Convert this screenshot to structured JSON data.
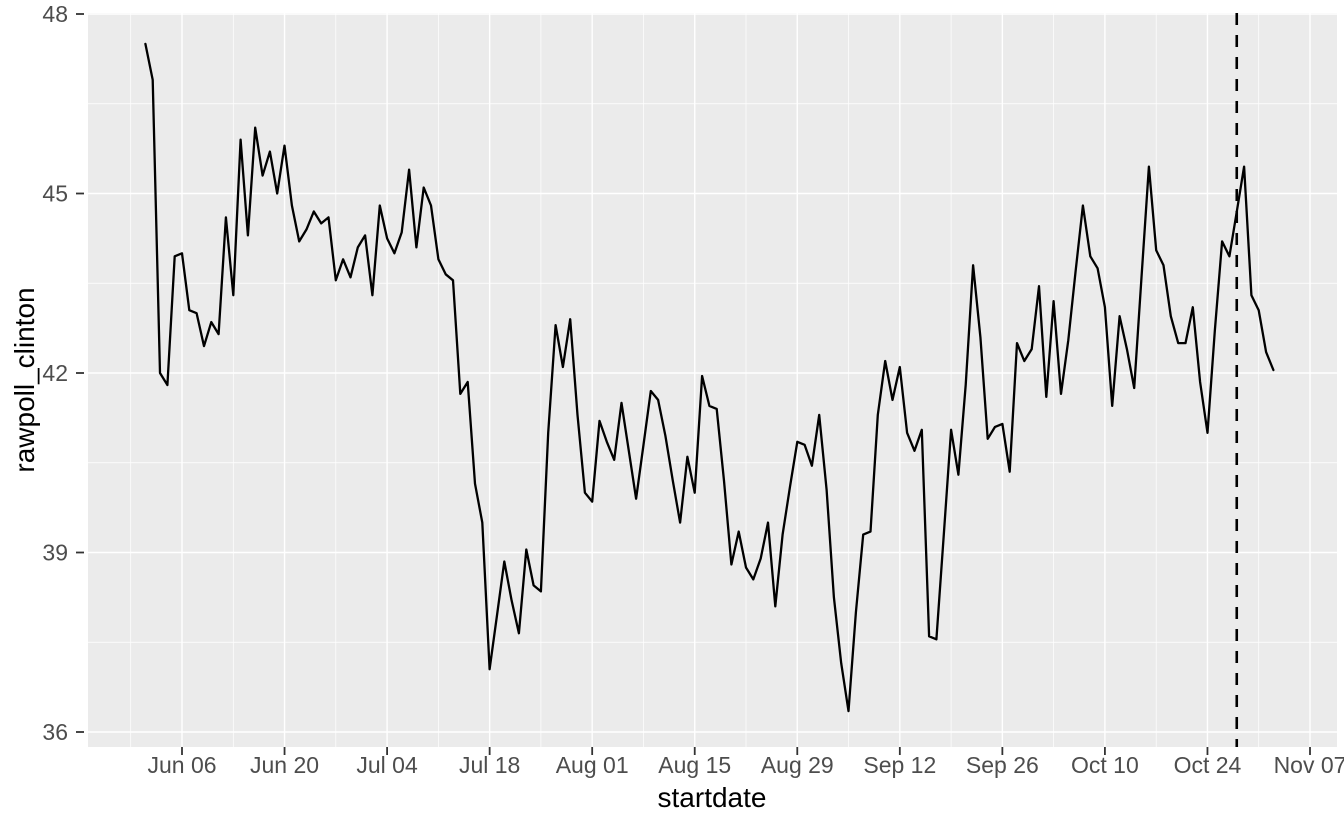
{
  "figure": {
    "background": "#ffffff",
    "panel_background": "#ebebeb",
    "grid_color": "#ffffff",
    "line_color": "#000000",
    "tick_text_color": "#4d4d4d",
    "axis_title_color": "#000000"
  },
  "chart_data": {
    "type": "line",
    "title": "",
    "xlabel": "startdate",
    "ylabel": "rawpoll_clinton",
    "legend": "none",
    "grid": "white major and minor gridlines on gray panel",
    "y_ticks": [
      36,
      39,
      42,
      45,
      48
    ],
    "y_minor_ticks": [
      37.5,
      40.5,
      43.5,
      46.5
    ],
    "ylim": [
      35.75,
      48.05
    ],
    "x_ticks": [
      {
        "label": "Jun 06",
        "date": "2016-06-06"
      },
      {
        "label": "Jun 20",
        "date": "2016-06-20"
      },
      {
        "label": "Jul 04",
        "date": "2016-07-04"
      },
      {
        "label": "Jul 18",
        "date": "2016-07-18"
      },
      {
        "label": "Aug 01",
        "date": "2016-08-01"
      },
      {
        "label": "Aug 15",
        "date": "2016-08-15"
      },
      {
        "label": "Aug 29",
        "date": "2016-08-29"
      },
      {
        "label": "Sep 12",
        "date": "2016-09-12"
      },
      {
        "label": "Sep 26",
        "date": "2016-09-26"
      },
      {
        "label": "Oct 10",
        "date": "2016-10-10"
      },
      {
        "label": "Oct 24",
        "date": "2016-10-24"
      },
      {
        "label": "Nov 07",
        "date": "2016-11-07"
      }
    ],
    "x_minor_tick_dates": [
      "2016-05-30",
      "2016-06-13",
      "2016-06-27",
      "2016-07-11",
      "2016-07-25",
      "2016-08-08",
      "2016-08-22",
      "2016-09-05",
      "2016-09-19",
      "2016-10-03",
      "2016-10-17",
      "2016-10-31"
    ],
    "xlim_dates": [
      "2016-05-24",
      "2016-11-10"
    ],
    "vline": {
      "date": "2016-10-28",
      "style": "dashed",
      "color": "#000000"
    },
    "series": [
      {
        "name": "rawpoll_clinton",
        "points": [
          [
            "2016-06-01",
            47.5
          ],
          [
            "2016-06-02",
            46.9
          ],
          [
            "2016-06-03",
            42.0
          ],
          [
            "2016-06-04",
            41.8
          ],
          [
            "2016-06-05",
            43.95
          ],
          [
            "2016-06-06",
            44.0
          ],
          [
            "2016-06-07",
            43.05
          ],
          [
            "2016-06-08",
            43.0
          ],
          [
            "2016-06-09",
            42.45
          ],
          [
            "2016-06-10",
            42.85
          ],
          [
            "2016-06-11",
            42.65
          ],
          [
            "2016-06-12",
            44.6
          ],
          [
            "2016-06-13",
            43.3
          ],
          [
            "2016-06-14",
            45.9
          ],
          [
            "2016-06-15",
            44.3
          ],
          [
            "2016-06-16",
            46.1
          ],
          [
            "2016-06-17",
            45.3
          ],
          [
            "2016-06-18",
            45.7
          ],
          [
            "2016-06-19",
            45.0
          ],
          [
            "2016-06-20",
            45.8
          ],
          [
            "2016-06-21",
            44.8
          ],
          [
            "2016-06-22",
            44.2
          ],
          [
            "2016-06-23",
            44.4
          ],
          [
            "2016-06-24",
            44.7
          ],
          [
            "2016-06-25",
            44.5
          ],
          [
            "2016-06-26",
            44.6
          ],
          [
            "2016-06-27",
            43.55
          ],
          [
            "2016-06-28",
            43.9
          ],
          [
            "2016-06-29",
            43.6
          ],
          [
            "2016-06-30",
            44.1
          ],
          [
            "2016-07-01",
            44.3
          ],
          [
            "2016-07-02",
            43.3
          ],
          [
            "2016-07-03",
            44.8
          ],
          [
            "2016-07-04",
            44.25
          ],
          [
            "2016-07-05",
            44.0
          ],
          [
            "2016-07-06",
            44.35
          ],
          [
            "2016-07-07",
            45.4
          ],
          [
            "2016-07-08",
            44.1
          ],
          [
            "2016-07-09",
            45.1
          ],
          [
            "2016-07-10",
            44.8
          ],
          [
            "2016-07-11",
            43.9
          ],
          [
            "2016-07-12",
            43.65
          ],
          [
            "2016-07-13",
            43.55
          ],
          [
            "2016-07-14",
            41.65
          ],
          [
            "2016-07-15",
            41.85
          ],
          [
            "2016-07-16",
            40.15
          ],
          [
            "2016-07-17",
            39.5
          ],
          [
            "2016-07-18",
            37.05
          ],
          [
            "2016-07-19",
            37.95
          ],
          [
            "2016-07-20",
            38.85
          ],
          [
            "2016-07-21",
            38.2
          ],
          [
            "2016-07-22",
            37.65
          ],
          [
            "2016-07-23",
            39.05
          ],
          [
            "2016-07-24",
            38.45
          ],
          [
            "2016-07-25",
            38.35
          ],
          [
            "2016-07-26",
            41.0
          ],
          [
            "2016-07-27",
            42.8
          ],
          [
            "2016-07-28",
            42.1
          ],
          [
            "2016-07-29",
            42.9
          ],
          [
            "2016-07-30",
            41.3
          ],
          [
            "2016-07-31",
            40.0
          ],
          [
            "2016-08-01",
            39.85
          ],
          [
            "2016-08-02",
            41.2
          ],
          [
            "2016-08-03",
            40.85
          ],
          [
            "2016-08-04",
            40.55
          ],
          [
            "2016-08-05",
            41.5
          ],
          [
            "2016-08-06",
            40.7
          ],
          [
            "2016-08-07",
            39.9
          ],
          [
            "2016-08-08",
            40.8
          ],
          [
            "2016-08-09",
            41.7
          ],
          [
            "2016-08-10",
            41.55
          ],
          [
            "2016-08-11",
            40.95
          ],
          [
            "2016-08-12",
            40.2
          ],
          [
            "2016-08-13",
            39.5
          ],
          [
            "2016-08-14",
            40.6
          ],
          [
            "2016-08-15",
            40.0
          ],
          [
            "2016-08-16",
            41.95
          ],
          [
            "2016-08-17",
            41.45
          ],
          [
            "2016-08-18",
            41.4
          ],
          [
            "2016-08-19",
            40.2
          ],
          [
            "2016-08-20",
            38.8
          ],
          [
            "2016-08-21",
            39.35
          ],
          [
            "2016-08-22",
            38.75
          ],
          [
            "2016-08-23",
            38.55
          ],
          [
            "2016-08-24",
            38.9
          ],
          [
            "2016-08-25",
            39.5
          ],
          [
            "2016-08-26",
            38.1
          ],
          [
            "2016-08-27",
            39.3
          ],
          [
            "2016-08-28",
            40.1
          ],
          [
            "2016-08-29",
            40.85
          ],
          [
            "2016-08-30",
            40.8
          ],
          [
            "2016-08-31",
            40.45
          ],
          [
            "2016-09-01",
            41.3
          ],
          [
            "2016-09-02",
            40.05
          ],
          [
            "2016-09-03",
            38.25
          ],
          [
            "2016-09-04",
            37.15
          ],
          [
            "2016-09-05",
            36.35
          ],
          [
            "2016-09-06",
            38.0
          ],
          [
            "2016-09-07",
            39.3
          ],
          [
            "2016-09-08",
            39.35
          ],
          [
            "2016-09-09",
            41.3
          ],
          [
            "2016-09-10",
            42.2
          ],
          [
            "2016-09-11",
            41.55
          ],
          [
            "2016-09-12",
            42.1
          ],
          [
            "2016-09-13",
            41.0
          ],
          [
            "2016-09-14",
            40.7
          ],
          [
            "2016-09-15",
            41.05
          ],
          [
            "2016-09-16",
            37.6
          ],
          [
            "2016-09-17",
            37.55
          ],
          [
            "2016-09-18",
            39.3
          ],
          [
            "2016-09-19",
            41.05
          ],
          [
            "2016-09-20",
            40.3
          ],
          [
            "2016-09-21",
            41.8
          ],
          [
            "2016-09-22",
            43.8
          ],
          [
            "2016-09-23",
            42.6
          ],
          [
            "2016-09-24",
            40.9
          ],
          [
            "2016-09-25",
            41.1
          ],
          [
            "2016-09-26",
            41.15
          ],
          [
            "2016-09-27",
            40.35
          ],
          [
            "2016-09-28",
            42.5
          ],
          [
            "2016-09-29",
            42.2
          ],
          [
            "2016-09-30",
            42.4
          ],
          [
            "2016-10-01",
            43.45
          ],
          [
            "2016-10-02",
            41.6
          ],
          [
            "2016-10-03",
            43.2
          ],
          [
            "2016-10-04",
            41.65
          ],
          [
            "2016-10-05",
            42.55
          ],
          [
            "2016-10-06",
            43.7
          ],
          [
            "2016-10-07",
            44.8
          ],
          [
            "2016-10-08",
            43.95
          ],
          [
            "2016-10-09",
            43.75
          ],
          [
            "2016-10-10",
            43.1
          ],
          [
            "2016-10-11",
            41.45
          ],
          [
            "2016-10-12",
            42.95
          ],
          [
            "2016-10-13",
            42.4
          ],
          [
            "2016-10-14",
            41.75
          ],
          [
            "2016-10-15",
            43.6
          ],
          [
            "2016-10-16",
            45.45
          ],
          [
            "2016-10-17",
            44.05
          ],
          [
            "2016-10-18",
            43.8
          ],
          [
            "2016-10-19",
            42.95
          ],
          [
            "2016-10-20",
            42.5
          ],
          [
            "2016-10-21",
            42.5
          ],
          [
            "2016-10-22",
            43.1
          ],
          [
            "2016-10-23",
            41.85
          ],
          [
            "2016-10-24",
            41.0
          ],
          [
            "2016-10-25",
            42.7
          ],
          [
            "2016-10-26",
            44.2
          ],
          [
            "2016-10-27",
            43.95
          ],
          [
            "2016-10-28",
            44.7
          ],
          [
            "2016-10-29",
            45.45
          ],
          [
            "2016-10-30",
            43.3
          ],
          [
            "2016-10-31",
            43.05
          ],
          [
            "2016-11-01",
            42.35
          ],
          [
            "2016-11-02",
            42.05
          ]
        ]
      }
    ]
  }
}
